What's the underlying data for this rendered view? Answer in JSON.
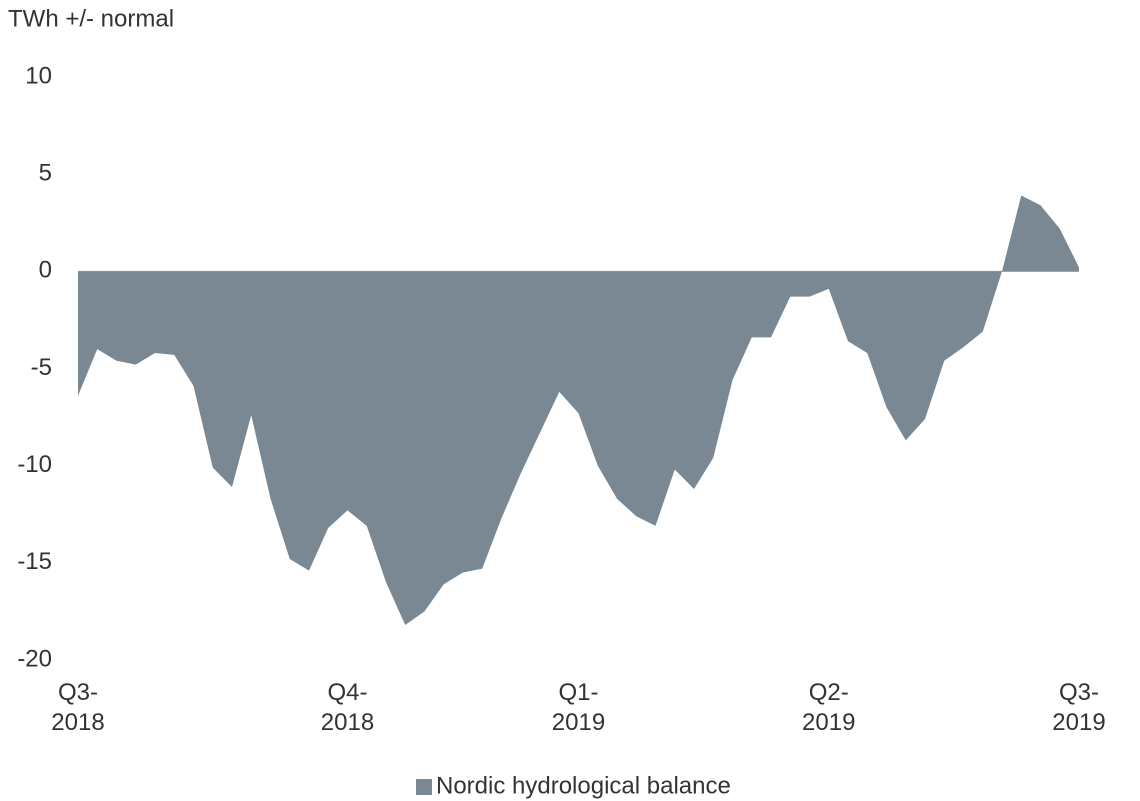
{
  "chart_data": {
    "type": "area",
    "y_axis_label": "TWh +/- normal",
    "categories": [
      "Q3-2018",
      null,
      null,
      null,
      null,
      null,
      null,
      null,
      null,
      null,
      null,
      null,
      null,
      null,
      "Q4-2018",
      null,
      null,
      null,
      null,
      null,
      null,
      null,
      null,
      null,
      null,
      null,
      "Q1-2019",
      null,
      null,
      null,
      null,
      null,
      null,
      null,
      null,
      null,
      null,
      null,
      null,
      "Q2-2019",
      null,
      null,
      null,
      null,
      null,
      null,
      null,
      null,
      null,
      null,
      null,
      null,
      "Q3-2019"
    ],
    "series": [
      {
        "name": "Nordic hydrological balance",
        "color": "#7a8893",
        "values": [
          -6.4,
          -4.0,
          -4.6,
          -4.8,
          -4.2,
          -4.3,
          -5.9,
          -10.1,
          -11.1,
          -7.4,
          -11.7,
          -14.8,
          -15.4,
          -13.2,
          -12.3,
          -13.1,
          -16.0,
          -18.2,
          -17.5,
          -16.1,
          -15.5,
          -15.3,
          -12.7,
          -10.4,
          -8.3,
          -6.2,
          -7.3,
          -10.0,
          -11.7,
          -12.6,
          -13.1,
          -10.2,
          -11.2,
          -9.6,
          -5.6,
          -3.4,
          -3.4,
          -1.3,
          -1.3,
          -0.9,
          -3.6,
          -4.2,
          -7.0,
          -8.7,
          -7.6,
          -4.6,
          -3.9,
          -3.1,
          0.0,
          3.9,
          3.4,
          2.2,
          0.2
        ]
      }
    ],
    "ylim": [
      -20,
      10
    ],
    "yticks": [
      -20,
      -15,
      -10,
      -5,
      0,
      5,
      10
    ],
    "legend": "bottom"
  }
}
